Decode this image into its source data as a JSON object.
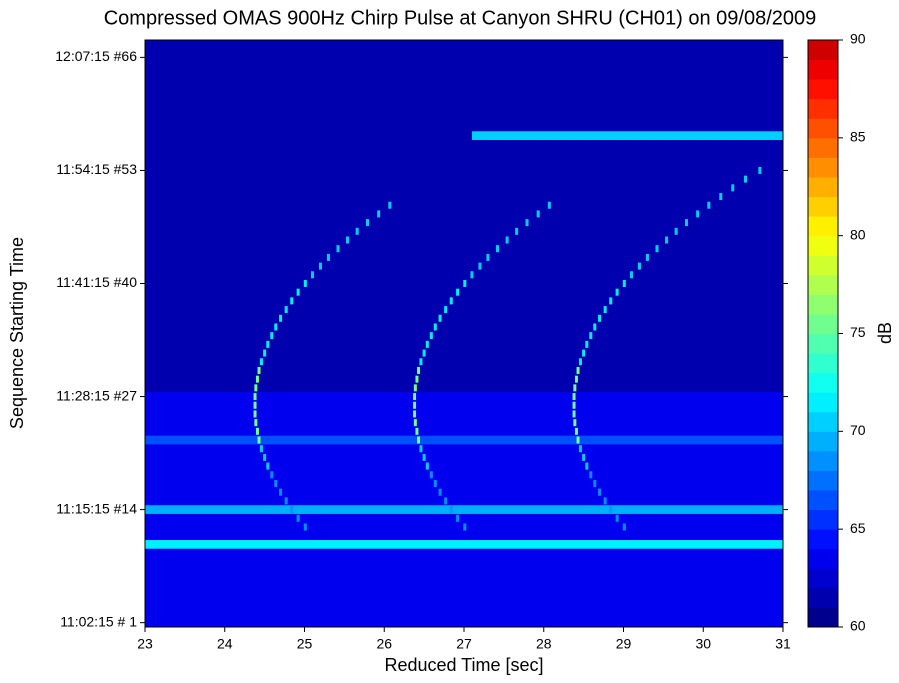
{
  "chart_data": {
    "type": "heatmap",
    "title": "Compressed OMAS 900Hz Chirp Pulse at Canyon SHRU (CH01) on 09/08/2009",
    "xlabel": "Reduced Time [sec]",
    "ylabel": "Sequence Starting Time",
    "colorbar_label": "dB",
    "xlim": [
      23,
      31
    ],
    "xticks": [
      23,
      24,
      25,
      26,
      27,
      28,
      29,
      30,
      31
    ],
    "ylim": [
      0.5,
      68
    ],
    "yticks": [
      {
        "value": 1,
        "label": "11:02:15 # 1"
      },
      {
        "value": 14,
        "label": "11:15:15 #14"
      },
      {
        "value": 27,
        "label": "11:28:15 #27"
      },
      {
        "value": 40,
        "label": "11:41:15 #40"
      },
      {
        "value": 53,
        "label": "11:54:15 #53"
      },
      {
        "value": 66,
        "label": "12:07:15 #66"
      }
    ],
    "zlim": [
      60,
      90
    ],
    "zticks": [
      60,
      65,
      70,
      75,
      80,
      85,
      90
    ],
    "colormap": [
      "#00008f",
      "#0000af",
      "#0000cf",
      "#0000ef",
      "#0010ff",
      "#0030ff",
      "#0050ff",
      "#0070ff",
      "#0090ff",
      "#00b0ff",
      "#00d0ff",
      "#00f0ff",
      "#10ffef",
      "#30ffcf",
      "#50ffaf",
      "#70ff8f",
      "#90ff6f",
      "#b0ff4f",
      "#d0ff2f",
      "#f0ff0f",
      "#ffef00",
      "#ffcf00",
      "#ffaf00",
      "#ff8f00",
      "#ff6f00",
      "#ff4f00",
      "#ff2f00",
      "#ff0f00",
      "#ef0000",
      "#cf0000"
    ],
    "bands": [
      {
        "y": [
          0.5,
          68
        ],
        "x": [
          23,
          31
        ],
        "value": 61
      },
      {
        "y": [
          0.5,
          27.5
        ],
        "x": [
          23,
          31
        ],
        "value": 63
      },
      {
        "y": [
          21.5,
          22.5
        ],
        "x": [
          23,
          31
        ],
        "value": 66
      },
      {
        "y": [
          13.5,
          14.5
        ],
        "x": [
          23,
          31
        ],
        "value": 69
      },
      {
        "y": [
          9.5,
          10.5
        ],
        "x": [
          23,
          31
        ],
        "value": 71
      },
      {
        "y": [
          56.5,
          57.5
        ],
        "x": [
          27.1,
          31
        ],
        "value": 70
      }
    ],
    "series": [
      {
        "x": [
          25.01,
          24.92,
          24.84,
          24.77,
          24.7,
          24.64,
          24.59,
          24.54,
          24.5,
          24.46,
          24.43,
          24.41,
          24.39,
          24.38,
          24.38,
          24.38,
          24.39,
          24.41,
          24.43,
          24.46,
          24.5,
          24.54,
          24.59,
          24.64,
          24.7,
          24.77,
          24.84,
          24.92,
          25.01,
          25.1,
          25.2,
          25.3,
          25.42,
          25.54,
          25.66,
          25.79,
          25.93,
          26.07
        ],
        "y": [
          12,
          13,
          14,
          15,
          16,
          17,
          18,
          19,
          20,
          21,
          22,
          23,
          24,
          25,
          26,
          27,
          28,
          29,
          30,
          31,
          32,
          33,
          34,
          35,
          36,
          37,
          38,
          39,
          40,
          41,
          42,
          43,
          44,
          45,
          46,
          47,
          48,
          49
        ],
        "values": [
          68,
          68,
          68,
          68,
          68,
          68,
          68,
          70,
          70,
          70,
          75,
          75,
          75,
          75,
          75,
          75,
          75,
          75,
          75,
          71,
          71,
          71,
          71,
          71,
          71,
          71,
          71,
          71,
          71,
          70,
          70,
          70,
          70,
          70,
          70,
          70,
          70,
          70
        ]
      },
      {
        "x": [
          27.01,
          26.92,
          26.84,
          26.77,
          26.7,
          26.64,
          26.59,
          26.54,
          26.5,
          26.46,
          26.43,
          26.41,
          26.39,
          26.38,
          26.38,
          26.38,
          26.39,
          26.41,
          26.43,
          26.46,
          26.5,
          26.54,
          26.59,
          26.64,
          26.7,
          26.77,
          26.84,
          26.92,
          27.01,
          27.1,
          27.2,
          27.3,
          27.42,
          27.54,
          27.66,
          27.79,
          27.93,
          28.07
        ],
        "y": [
          12,
          13,
          14,
          15,
          16,
          17,
          18,
          19,
          20,
          21,
          22,
          23,
          24,
          25,
          26,
          27,
          28,
          29,
          30,
          31,
          32,
          33,
          34,
          35,
          36,
          37,
          38,
          39,
          40,
          41,
          42,
          43,
          44,
          45,
          46,
          47,
          48,
          49
        ],
        "values": [
          68,
          68,
          68,
          68,
          68,
          68,
          68,
          70,
          70,
          70,
          75,
          75,
          75,
          75,
          75,
          75,
          75,
          75,
          75,
          71,
          71,
          71,
          71,
          71,
          71,
          71,
          71,
          71,
          71,
          70,
          70,
          70,
          70,
          70,
          70,
          70,
          70,
          70
        ]
      },
      {
        "x": [
          29.01,
          28.92,
          28.84,
          28.77,
          28.7,
          28.64,
          28.59,
          28.54,
          28.5,
          28.46,
          28.43,
          28.41,
          28.39,
          28.38,
          28.38,
          28.38,
          28.39,
          28.41,
          28.43,
          28.46,
          28.5,
          28.54,
          28.59,
          28.64,
          28.7,
          28.77,
          28.84,
          28.92,
          29.01,
          29.1,
          29.2,
          29.3,
          29.42,
          29.54,
          29.66,
          29.79,
          29.93,
          30.07,
          30.22,
          30.37,
          30.53,
          30.71
        ],
        "y": [
          12,
          13,
          14,
          15,
          16,
          17,
          18,
          19,
          20,
          21,
          22,
          23,
          24,
          25,
          26,
          27,
          28,
          29,
          30,
          31,
          32,
          33,
          34,
          35,
          36,
          37,
          38,
          39,
          40,
          41,
          42,
          43,
          44,
          45,
          46,
          47,
          48,
          49,
          50,
          51,
          52,
          53
        ],
        "values": [
          68,
          68,
          68,
          68,
          68,
          68,
          68,
          70,
          70,
          70,
          75,
          75,
          75,
          75,
          75,
          75,
          75,
          75,
          75,
          71,
          71,
          71,
          71,
          71,
          71,
          71,
          71,
          71,
          71,
          70,
          70,
          70,
          70,
          70,
          70,
          70,
          70,
          70,
          70,
          70,
          70,
          70
        ]
      }
    ]
  }
}
